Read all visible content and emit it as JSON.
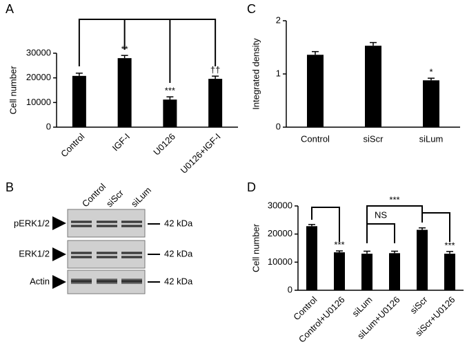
{
  "chart_data": [
    {
      "type": "bar",
      "panel": "A",
      "ylabel": "Cell number",
      "categories": [
        "Control",
        "IGF-I",
        "U0126",
        "U0126+IGF-I"
      ],
      "values": [
        20800,
        28000,
        11200,
        19600
      ],
      "errors": [
        1100,
        1100,
        1100,
        1100
      ],
      "value_annotations": [
        null,
        "**",
        "***",
        "††"
      ],
      "color": "#000000",
      "ylim": [
        0,
        30000
      ],
      "yticks": [
        0,
        10000,
        20000,
        30000
      ]
    },
    {
      "type": "bar",
      "panel": "C",
      "ylabel": "Integrated density",
      "categories": [
        "Control",
        "siScr",
        "siLum"
      ],
      "values": [
        1.36,
        1.53,
        0.88
      ],
      "errors": [
        0.06,
        0.06,
        0.04
      ],
      "value_annotations": [
        null,
        null,
        "*"
      ],
      "color": "#000000",
      "ylim": [
        0,
        2
      ],
      "yticks": [
        0,
        1,
        2
      ]
    },
    {
      "type": "bar",
      "panel": "D",
      "ylabel": "Cell number",
      "categories": [
        "Control",
        "Control+U0126",
        "siLum",
        "siLum+U0126",
        "siScr",
        "siScr+U0126"
      ],
      "values": [
        22800,
        13500,
        13000,
        13200,
        21500,
        13000
      ],
      "errors": [
        600,
        500,
        900,
        700,
        700,
        800
      ],
      "value_annotations": [
        null,
        "***",
        null,
        null,
        null,
        "***"
      ],
      "bracket_labels": [
        "NS",
        "***"
      ],
      "color": "#000000",
      "ylim": [
        0,
        30000
      ],
      "yticks": [
        0,
        10000,
        20000,
        30000
      ]
    }
  ],
  "blot": {
    "panel": "B",
    "lanes": [
      "Control",
      "siScr",
      "siLum"
    ],
    "rows": [
      {
        "label": "pERK1/2",
        "size": "42 kDa"
      },
      {
        "label": "ERK1/2",
        "size": "42 kDa"
      },
      {
        "label": "Actin",
        "size": "42 kDa"
      }
    ]
  }
}
